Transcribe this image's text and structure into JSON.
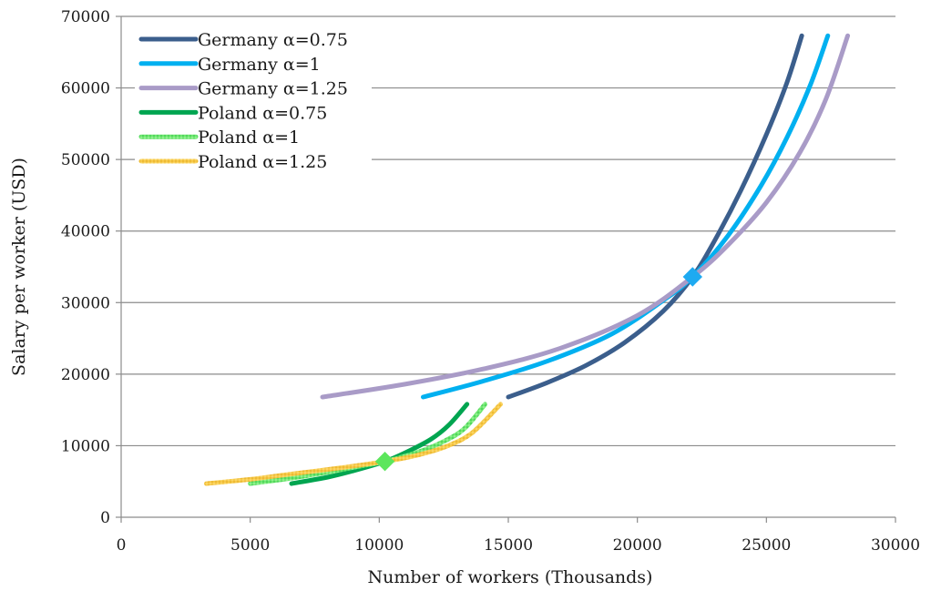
{
  "chart_data": {
    "type": "line",
    "title": "",
    "xlabel": "Number of workers (Thousands)",
    "ylabel": "Salary per worker (USD)",
    "xlim": [
      0,
      30000
    ],
    "ylim": [
      0,
      70000
    ],
    "xticks": [
      0,
      5000,
      10000,
      15000,
      20000,
      25000,
      30000
    ],
    "yticks": [
      0,
      10000,
      20000,
      30000,
      40000,
      50000,
      60000,
      70000
    ],
    "xtick_labels": [
      "0",
      "5000",
      "10000",
      "15000",
      "20000",
      "25000",
      "30000"
    ],
    "ytick_labels": [
      "0",
      "10000",
      "20000",
      "30000",
      "40000",
      "50000",
      "60000",
      "70000"
    ],
    "grid": "horizontal",
    "legend_position": "top-left",
    "series": [
      {
        "name": "Germany α=0.75",
        "color": "#3b5e8c",
        "style": "solid",
        "points": [
          [
            15000,
            16800
          ],
          [
            16500,
            18800
          ],
          [
            18000,
            21200
          ],
          [
            19500,
            24400
          ],
          [
            21000,
            28800
          ],
          [
            22140,
            33600
          ],
          [
            23000,
            38700
          ],
          [
            24000,
            45600
          ],
          [
            25000,
            53500
          ],
          [
            25800,
            60800
          ],
          [
            26370,
            67300
          ]
        ]
      },
      {
        "name": "Germany α=1",
        "color": "#00b0f0",
        "style": "solid",
        "points": [
          [
            11700,
            16800
          ],
          [
            14000,
            19000
          ],
          [
            16500,
            21800
          ],
          [
            19000,
            25600
          ],
          [
            21000,
            30300
          ],
          [
            22140,
            33600
          ],
          [
            23500,
            39300
          ],
          [
            24800,
            46400
          ],
          [
            25800,
            53100
          ],
          [
            26700,
            60400
          ],
          [
            27380,
            67300
          ]
        ]
      },
      {
        "name": "Germany α=1.25",
        "color": "#a99bc7",
        "style": "solid",
        "points": [
          [
            7800,
            16800
          ],
          [
            11000,
            18600
          ],
          [
            14000,
            20700
          ],
          [
            17000,
            23600
          ],
          [
            20000,
            28200
          ],
          [
            22140,
            33600
          ],
          [
            23500,
            38000
          ],
          [
            25000,
            44000
          ],
          [
            26300,
            51000
          ],
          [
            27300,
            58400
          ],
          [
            28150,
            67300
          ]
        ]
      },
      {
        "name": "Poland α=0.75",
        "color": "#00a550",
        "style": "solid",
        "points": [
          [
            6600,
            4700
          ],
          [
            8000,
            5600
          ],
          [
            9000,
            6500
          ],
          [
            10220,
            7800
          ],
          [
            11000,
            9000
          ],
          [
            12000,
            10900
          ],
          [
            12700,
            12900
          ],
          [
            13400,
            15800
          ]
        ]
      },
      {
        "name": "Poland α=1",
        "color": "#5ce65c",
        "style": "textured",
        "points": [
          [
            5000,
            4700
          ],
          [
            6500,
            5400
          ],
          [
            8000,
            6300
          ],
          [
            9200,
            7100
          ],
          [
            10220,
            7800
          ],
          [
            11500,
            9100
          ],
          [
            12500,
            10600
          ],
          [
            13300,
            12400
          ],
          [
            14100,
            15800
          ]
        ]
      },
      {
        "name": "Poland α=1.25",
        "color": "#f7c948",
        "style": "textured",
        "points": [
          [
            3300,
            4700
          ],
          [
            5000,
            5300
          ],
          [
            6500,
            6000
          ],
          [
            8500,
            6900
          ],
          [
            10220,
            7800
          ],
          [
            11500,
            8700
          ],
          [
            12600,
            9900
          ],
          [
            13600,
            11800
          ],
          [
            14700,
            15800
          ]
        ]
      }
    ],
    "markers": [
      {
        "x": 22140,
        "y": 33600,
        "shape": "diamond",
        "color": "#1eaaf1"
      },
      {
        "x": 10220,
        "y": 7800,
        "shape": "diamond",
        "color": "#5ce65c"
      }
    ]
  }
}
